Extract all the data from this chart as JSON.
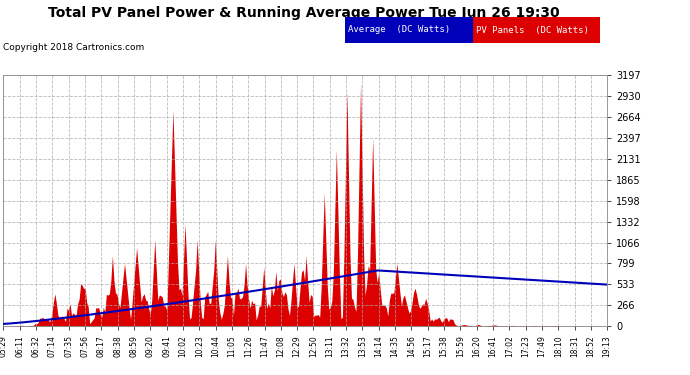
{
  "title": "Total PV Panel Power & Running Average Power Tue Jun 26 19:30",
  "copyright": "Copyright 2018 Cartronics.com",
  "legend_avg": "Average  (DC Watts)",
  "legend_pv": "PV Panels  (DC Watts)",
  "ymax": 3196.6,
  "ymin": 0.0,
  "yticks": [
    0.0,
    266.4,
    532.8,
    799.1,
    1065.5,
    1331.9,
    1598.3,
    1864.7,
    2131.1,
    2397.4,
    2663.8,
    2930.2,
    3196.6
  ],
  "bg_color": "#ffffff",
  "plot_bg": "#ffffff",
  "grid_color": "#aaaaaa",
  "pv_color": "#dd0000",
  "avg_color": "#0000bb",
  "title_color": "#000000",
  "fig_width": 6.9,
  "fig_height": 3.75,
  "dpi": 100,
  "time_labels": [
    "05:29",
    "06:11",
    "06:32",
    "07:14",
    "07:35",
    "07:56",
    "08:17",
    "08:38",
    "08:59",
    "09:20",
    "09:41",
    "10:02",
    "10:23",
    "10:44",
    "11:05",
    "11:26",
    "11:47",
    "12:08",
    "12:29",
    "12:50",
    "13:11",
    "13:32",
    "13:53",
    "14:14",
    "14:35",
    "14:56",
    "15:17",
    "15:38",
    "15:59",
    "16:20",
    "16:41",
    "17:02",
    "17:23",
    "17:49",
    "18:10",
    "18:31",
    "18:52",
    "19:13"
  ]
}
